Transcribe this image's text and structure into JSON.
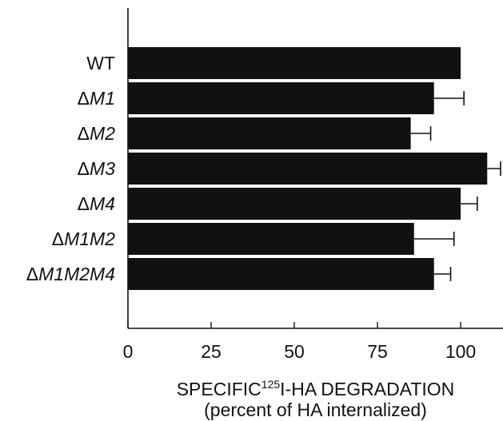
{
  "chart_data": {
    "type": "bar",
    "orientation": "horizontal",
    "categories": [
      "WT",
      "ΔM1",
      "ΔM2",
      "ΔM3",
      "ΔM4",
      "ΔM1M2",
      "ΔM1M2M4"
    ],
    "category_parts": [
      {
        "prefix": "",
        "name": "WT"
      },
      {
        "prefix": "Δ",
        "name": "M1"
      },
      {
        "prefix": "Δ",
        "name": "M2"
      },
      {
        "prefix": "Δ",
        "name": "M3"
      },
      {
        "prefix": "Δ",
        "name": "M4"
      },
      {
        "prefix": "Δ",
        "name": "M1M2"
      },
      {
        "prefix": "Δ",
        "name": "M1M2M4"
      }
    ],
    "values": [
      100,
      92,
      85,
      108,
      100,
      86,
      92
    ],
    "errors": [
      0,
      9,
      6,
      4,
      5,
      12,
      5
    ],
    "xlim": [
      0,
      112
    ],
    "xticks": [
      0,
      25,
      50,
      75,
      100
    ],
    "xticklabels": [
      "0",
      "25",
      "50",
      "75",
      "100"
    ],
    "xlabel_prefix": "SPECIFIC",
    "xlabel_sup": "125",
    "xlabel_suffix": "I-HA DEGRADATION",
    "xlabel_line2": "(percent of HA internalized)",
    "grid": false,
    "bar_color": "#111111"
  }
}
